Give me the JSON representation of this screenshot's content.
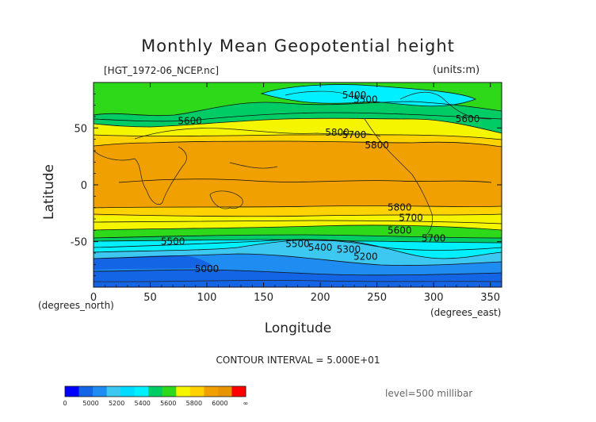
{
  "header": {
    "title": "Monthly Mean Geopotential height",
    "file_label": "[HGT_1972-06_NCEP.nc]",
    "units_label": "(units:m)"
  },
  "footer": {
    "contour_interval": "CONTOUR INTERVAL = 5.000E+01",
    "level": "level=500 millibar"
  },
  "colors": {
    "c_lt5000": "#1464e6",
    "c_5000": "#1e8cf0",
    "c_5200": "#3cc8f0",
    "c_5400": "#00f0ff",
    "c_5500": "#00cc66",
    "c_5600": "#2ed91a",
    "c_5700": "#f5f500",
    "c_5750": "#ffd200",
    "c_5800": "#f0a000",
    "c_5850": "#e89400",
    "c_gt6000": "#ff0000"
  },
  "chart_data": {
    "type": "heatmap",
    "title": "Monthly Mean Geopotential height",
    "xlabel": "Longitude",
    "ylabel": "Latitude",
    "x_units": "(degrees_east)",
    "y_units": "(degrees_north)",
    "xlim": [
      0,
      360
    ],
    "ylim": [
      -90,
      90
    ],
    "x_ticks": [
      "0",
      "50",
      "100",
      "150",
      "200",
      "250",
      "300",
      "350"
    ],
    "y_ticks": [
      "50",
      "0",
      "-50"
    ],
    "contour_interval_m": 50,
    "level_mb": 500,
    "contour_labels": [
      {
        "value": "5500",
        "lon": 240,
        "lat": 75
      },
      {
        "value": "5400",
        "lon": 230,
        "lat": 79
      },
      {
        "value": "5600",
        "lon": 85,
        "lat": 56
      },
      {
        "value": "5700",
        "lon": 230,
        "lat": 44
      },
      {
        "value": "5800",
        "lon": 250,
        "lat": 35
      },
      {
        "value": "5500",
        "lon": 70,
        "lat": -50
      },
      {
        "value": "5600",
        "lon": 330,
        "lat": 58
      },
      {
        "value": "5800",
        "lon": 215,
        "lat": 46
      },
      {
        "value": "5800",
        "lon": 270,
        "lat": -20
      },
      {
        "value": "5700",
        "lon": 280,
        "lat": -29
      },
      {
        "value": "5600",
        "lon": 270,
        "lat": -40
      },
      {
        "value": "5500",
        "lon": 180,
        "lat": -52
      },
      {
        "value": "5400",
        "lon": 200,
        "lat": -55
      },
      {
        "value": "5300",
        "lon": 225,
        "lat": -57
      },
      {
        "value": "5200",
        "lon": 240,
        "lat": -63
      },
      {
        "value": "5700",
        "lon": 300,
        "lat": -47
      },
      {
        "value": "5000",
        "lon": 100,
        "lat": -74
      }
    ],
    "colorbar": {
      "tick_labels": [
        "0",
        "5000",
        "5200",
        "5400",
        "5600",
        "5800",
        "6000",
        "∞"
      ],
      "colors": [
        "#0000ff",
        "#1464e6",
        "#1e8cf0",
        "#3cc8f0",
        "#00dcff",
        "#00f0ff",
        "#00cc66",
        "#2ed91a",
        "#f5f500",
        "#ffd200",
        "#f0a000",
        "#e89400",
        "#ff0000"
      ]
    }
  }
}
